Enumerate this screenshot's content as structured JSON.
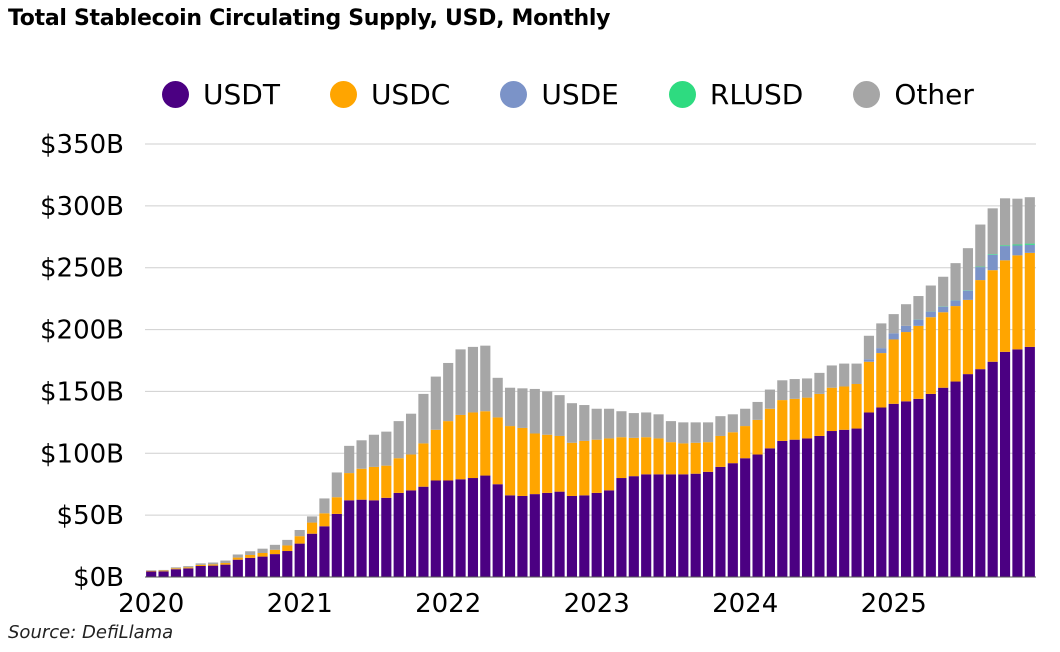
{
  "chart_data": {
    "type": "bar",
    "stacked": true,
    "title": "Total Stablecoin Circulating Supply, USD, Monthly",
    "source": "Source: DefiLlama",
    "xlabel": "",
    "ylabel": "",
    "ylim": [
      0,
      350
    ],
    "y_ticks": [
      {
        "value": 0,
        "label": "$0B"
      },
      {
        "value": 50,
        "label": "$50B"
      },
      {
        "value": 100,
        "label": "$100B"
      },
      {
        "value": 150,
        "label": "$150B"
      },
      {
        "value": 200,
        "label": "$200B"
      },
      {
        "value": 250,
        "label": "$250B"
      },
      {
        "value": 300,
        "label": "$300B"
      },
      {
        "value": 350,
        "label": "$350B"
      }
    ],
    "x_ticks": [
      {
        "index": 0,
        "label": "2020"
      },
      {
        "index": 12,
        "label": "2021"
      },
      {
        "index": 24,
        "label": "2022"
      },
      {
        "index": 36,
        "label": "2023"
      },
      {
        "index": 48,
        "label": "2024"
      },
      {
        "index": 60,
        "label": "2025"
      }
    ],
    "grid": true,
    "legend_position": "top",
    "start_month": "2020-01",
    "series": [
      {
        "name": "USDT",
        "color": "#4b0082",
        "values": [
          4.5,
          4.6,
          6.3,
          7.0,
          8.9,
          9.2,
          10.0,
          14.0,
          15.5,
          16.5,
          18.5,
          21.0,
          27.0,
          35.0,
          41.0,
          51.0,
          62.0,
          62.5,
          62.0,
          64.0,
          68.0,
          70.0,
          73.0,
          78.0,
          78.0,
          79.0,
          80.0,
          82.0,
          75.0,
          66.0,
          65.5,
          67.0,
          68.0,
          69.0,
          65.5,
          66.0,
          68.0,
          70.0,
          80.0,
          81.5,
          83.0,
          83.0,
          83.0,
          83.0,
          83.5,
          85.0,
          89.0,
          92.0,
          96.0,
          99.0,
          104.0,
          110.0,
          111.0,
          112.0,
          114.0,
          118.0,
          119.0,
          120.0,
          133.0,
          137.0,
          140.0,
          142.0,
          144.0,
          148.0,
          153.0,
          158.0,
          164.0,
          168.0,
          174.0,
          182.0,
          184.0,
          186.0
        ]
      },
      {
        "name": "USDC",
        "color": "#ffa500",
        "values": [
          0.5,
          0.6,
          0.7,
          0.8,
          0.9,
          1.0,
          1.3,
          1.7,
          2.3,
          2.9,
          3.5,
          4.5,
          6.0,
          9.0,
          10.5,
          13.5,
          22.0,
          25.0,
          27.0,
          26.0,
          28.0,
          29.0,
          35.0,
          41.0,
          48.0,
          52.0,
          53.0,
          52.0,
          54.0,
          56.0,
          55.0,
          49.0,
          47.0,
          45.0,
          43.0,
          44.0,
          43.0,
          42.0,
          33.0,
          31.0,
          30.0,
          29.0,
          26.0,
          25.0,
          25.0,
          24.0,
          25.0,
          25.0,
          26.0,
          28.0,
          32.0,
          33.0,
          33.0,
          33.0,
          34.0,
          35.0,
          35.0,
          36.0,
          41.0,
          44.0,
          52.0,
          56.0,
          59.0,
          62.0,
          61.0,
          61.0,
          60.0,
          72.0,
          74.0,
          74.0,
          76.0,
          76.0
        ]
      },
      {
        "name": "USDE",
        "color": "#7b93c8",
        "values": [
          0,
          0,
          0,
          0,
          0,
          0,
          0,
          0,
          0,
          0,
          0,
          0,
          0,
          0,
          0,
          0,
          0,
          0,
          0,
          0,
          0,
          0,
          0,
          0,
          0,
          0,
          0,
          0,
          0,
          0,
          0,
          0,
          0,
          0,
          0,
          0,
          0,
          0,
          0,
          0,
          0,
          0,
          0,
          0,
          0,
          0,
          0,
          0,
          0,
          0,
          0,
          0,
          0,
          0,
          0,
          0,
          0,
          0,
          2.0,
          4.0,
          5.0,
          5.0,
          5.0,
          4.5,
          4.5,
          4.5,
          7.5,
          10.5,
          12.5,
          11.5,
          8.0,
          6.5
        ]
      },
      {
        "name": "RLUSD",
        "color": "#2edb80",
        "values": [
          0,
          0,
          0,
          0,
          0,
          0,
          0,
          0,
          0,
          0,
          0,
          0,
          0,
          0,
          0,
          0,
          0,
          0,
          0,
          0,
          0,
          0,
          0,
          0,
          0,
          0,
          0,
          0,
          0,
          0,
          0,
          0,
          0,
          0,
          0,
          0,
          0,
          0,
          0,
          0,
          0,
          0,
          0,
          0,
          0,
          0,
          0,
          0,
          0,
          0,
          0,
          0,
          0,
          0,
          0,
          0,
          0,
          0,
          0,
          0,
          0,
          0,
          0.1,
          0.1,
          0.2,
          0.2,
          0.3,
          0.4,
          0.5,
          0.6,
          0.8,
          1.0
        ]
      },
      {
        "name": "Other",
        "color": "#a6a6a6",
        "values": [
          0.5,
          0.5,
          0.8,
          1.0,
          1.2,
          1.5,
          2.0,
          2.5,
          3.0,
          3.5,
          4.0,
          4.5,
          5.0,
          5.0,
          12.0,
          20.0,
          22.0,
          23.0,
          26.0,
          27.5,
          30.0,
          33.0,
          40.0,
          43.0,
          47.0,
          53.0,
          53.0,
          53.0,
          32.0,
          31.0,
          32.0,
          36.0,
          35.0,
          33.0,
          32.0,
          29.0,
          25.0,
          24.0,
          21.0,
          20.0,
          20.0,
          19.5,
          17.0,
          17.0,
          16.5,
          16.0,
          16.0,
          14.5,
          14.0,
          14.5,
          15.5,
          16.0,
          16.0,
          15.5,
          17.0,
          18.0,
          18.5,
          16.5,
          19.0,
          20.0,
          15.5,
          17.5,
          19.0,
          21.0,
          24.0,
          30.0,
          34.0,
          34.0,
          37.0,
          38.0,
          37.0,
          37.5
        ]
      }
    ]
  }
}
